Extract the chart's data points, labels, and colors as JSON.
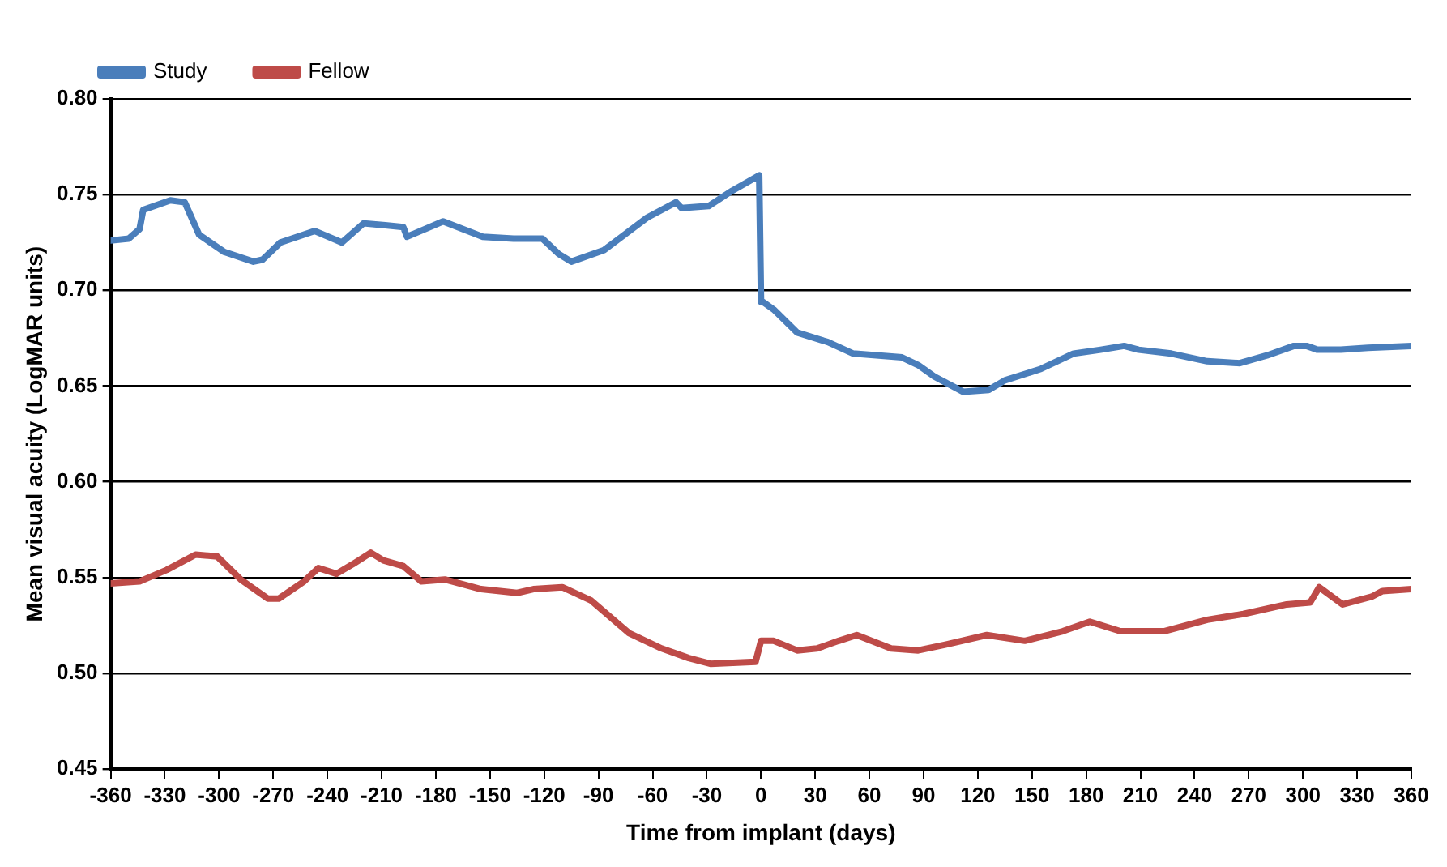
{
  "chart_data": {
    "type": "line",
    "xlabel": "Time from implant (days)",
    "ylabel": "Mean visual acuity (LogMAR units)",
    "xlim": [
      -360,
      360
    ],
    "xticks": [
      -360,
      -330,
      -300,
      -270,
      -240,
      -210,
      -180,
      -150,
      -120,
      -90,
      -60,
      -30,
      0,
      30,
      60,
      90,
      120,
      150,
      180,
      210,
      240,
      270,
      300,
      330,
      360
    ],
    "ylim": [
      0.45,
      0.8
    ],
    "yticks": [
      {
        "value": 0.45,
        "label": "0.45"
      },
      {
        "value": 0.5,
        "label": "0.50"
      },
      {
        "value": 0.55,
        "label": "0.55"
      },
      {
        "value": 0.6,
        "label": "0.60"
      },
      {
        "value": 0.65,
        "label": "0.65"
      },
      {
        "value": 0.7,
        "label": "0.70"
      },
      {
        "value": 0.75,
        "label": "0.75"
      },
      {
        "value": 0.8,
        "label": "0.80"
      }
    ],
    "grid": "y",
    "legend": "top left",
    "marker": "none",
    "line_style": "solid",
    "series": [
      {
        "name": "Study",
        "color": "#4a7ebb",
        "x": [
          -360,
          -350,
          -344,
          -342,
          -327,
          -319,
          -311,
          -297,
          -281,
          -276,
          -266,
          -247,
          -232,
          -220,
          -208,
          -198,
          -196,
          -176,
          -154,
          -137,
          -121,
          -112,
          -105,
          -87,
          -63,
          -47,
          -44,
          -29,
          -16,
          -1,
          0,
          1,
          7,
          20,
          37,
          51,
          78,
          87,
          96,
          112,
          126,
          135,
          155,
          173,
          188,
          201,
          209,
          227,
          247,
          265,
          280,
          295,
          302,
          308,
          321,
          336,
          360
        ],
        "values": [
          0.726,
          0.727,
          0.732,
          0.742,
          0.747,
          0.746,
          0.729,
          0.72,
          0.715,
          0.716,
          0.725,
          0.731,
          0.725,
          0.735,
          0.734,
          0.733,
          0.728,
          0.736,
          0.728,
          0.727,
          0.727,
          0.719,
          0.715,
          0.721,
          0.738,
          0.746,
          0.743,
          0.744,
          0.752,
          0.76,
          0.694,
          0.694,
          0.69,
          0.678,
          0.673,
          0.667,
          0.665,
          0.661,
          0.655,
          0.647,
          0.648,
          0.653,
          0.659,
          0.667,
          0.669,
          0.671,
          0.669,
          0.667,
          0.663,
          0.662,
          0.666,
          0.671,
          0.671,
          0.669,
          0.669,
          0.67,
          0.671
        ]
      },
      {
        "name": "Fellow",
        "color": "#be4b48",
        "x": [
          -360,
          -344,
          -329,
          -313,
          -301,
          -288,
          -273,
          -267,
          -253,
          -245,
          -235,
          -226,
          -216,
          -209,
          -198,
          -188,
          -175,
          -155,
          -135,
          -126,
          -110,
          -94,
          -73,
          -55,
          -40,
          -28,
          -3,
          0,
          1,
          7,
          20,
          31,
          43,
          53,
          72,
          87,
          102,
          125,
          146,
          167,
          182,
          199,
          223,
          247,
          267,
          291,
          304,
          309,
          322,
          338,
          344,
          360
        ],
        "values": [
          0.547,
          0.548,
          0.554,
          0.562,
          0.561,
          0.549,
          0.539,
          0.539,
          0.548,
          0.555,
          0.552,
          0.557,
          0.563,
          0.559,
          0.556,
          0.548,
          0.549,
          0.544,
          0.542,
          0.544,
          0.545,
          0.538,
          0.521,
          0.513,
          0.508,
          0.505,
          0.506,
          0.517,
          0.517,
          0.517,
          0.512,
          0.513,
          0.517,
          0.52,
          0.513,
          0.512,
          0.515,
          0.52,
          0.517,
          0.522,
          0.527,
          0.522,
          0.522,
          0.528,
          0.531,
          0.536,
          0.537,
          0.545,
          0.536,
          0.54,
          0.543,
          0.544
        ]
      }
    ]
  }
}
